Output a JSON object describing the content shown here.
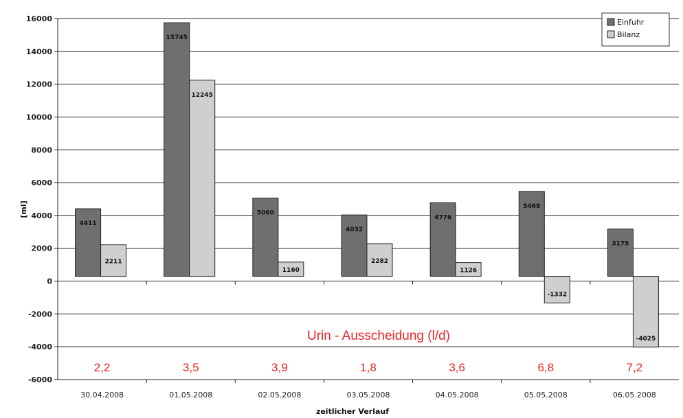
{
  "chart_data": {
    "type": "bar",
    "title": "",
    "xlabel": "zeitlicher Verlauf",
    "ylabel": "[ml]",
    "ylim": [
      -6000,
      16000
    ],
    "yticks": [
      16000,
      14000,
      12000,
      10000,
      8000,
      6000,
      4000,
      2000,
      0,
      -2000,
      -4000,
      -6000
    ],
    "grid": true,
    "legend_position": "top-right",
    "categories": [
      "30.04.2008",
      "01.05.2008",
      "02.05.2008",
      "03.05.2008",
      "04.05.2008",
      "05.05.2008",
      "06.05.2008"
    ],
    "series": [
      {
        "name": "Einfuhr",
        "color": "#6f6f6f",
        "values": [
          4411,
          15745,
          5060,
          4032,
          4776,
          5468,
          3175
        ]
      },
      {
        "name": "Bilanz",
        "color": "#cfcfcf",
        "values": [
          2211,
          12245,
          1160,
          2282,
          1126,
          -1332,
          -4025
        ]
      }
    ],
    "annotation": {
      "text": "Urin - Ausscheidung (l/d)",
      "color": "#ee2222",
      "values": [
        "2,2",
        "3,5",
        "3,9",
        "1,8",
        "3,6",
        "6,8",
        "7,2"
      ]
    }
  }
}
